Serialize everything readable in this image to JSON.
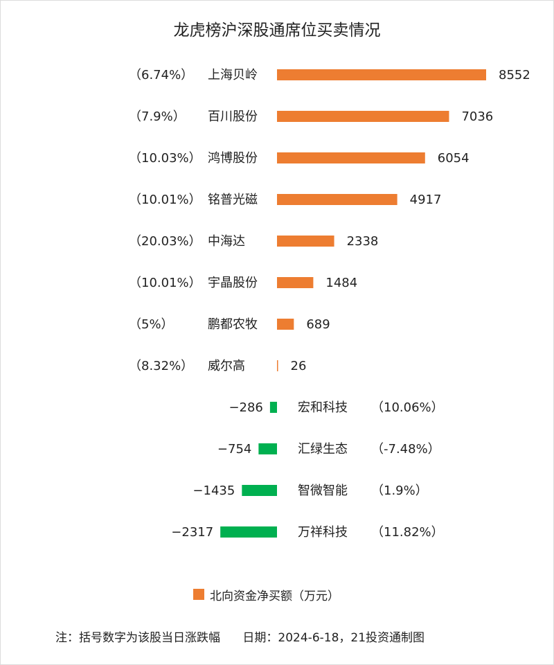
{
  "chart_data": {
    "type": "bar",
    "title": "龙虎榜沪深股通席位买卖情况",
    "unit_legend": "北向资金净买额（万元）",
    "colors": {
      "positive": "#ED7D31",
      "negative": "#00B050"
    },
    "series": [
      {
        "name": "北向资金净买额（万元）",
        "items": [
          {
            "stock": "上海贝岭",
            "value": 8552,
            "pct": "（6.74%）"
          },
          {
            "stock": "百川股份",
            "value": 7036,
            "pct": "（7.9%）"
          },
          {
            "stock": "鸿博股份",
            "value": 6054,
            "pct": "（10.03%）"
          },
          {
            "stock": "铭普光磁",
            "value": 4917,
            "pct": "（10.01%）"
          },
          {
            "stock": "中海达",
            "value": 2338,
            "pct": "（20.03%）"
          },
          {
            "stock": "宇晶股份",
            "value": 1484,
            "pct": "（10.01%）"
          },
          {
            "stock": "鹏都农牧",
            "value": 689,
            "pct": "（5%）"
          },
          {
            "stock": "威尔高",
            "value": 26,
            "pct": "（8.32%）"
          },
          {
            "stock": "宏和科技",
            "value": -286,
            "pct": "（10.06%）"
          },
          {
            "stock": "汇绿生态",
            "value": -754,
            "pct": "（-7.48%）"
          },
          {
            "stock": "智微智能",
            "value": -1435,
            "pct": "（1.9%）"
          },
          {
            "stock": "万祥科技",
            "value": -2317,
            "pct": "（11.82%）"
          }
        ]
      }
    ]
  },
  "footnote": "注：括号数字为该股当日涨跌幅      日期：2024-6-18，21投资通制图"
}
